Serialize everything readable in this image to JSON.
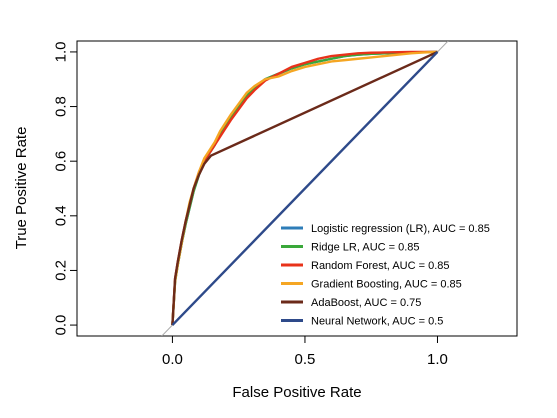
{
  "chart_data": {
    "type": "line",
    "title": "",
    "xlabel": "False Positive Rate",
    "ylabel": "True Positive Rate",
    "xlim": [
      -0.36,
      1.3
    ],
    "ylim": [
      -0.04,
      1.04
    ],
    "xticks": [
      0.0,
      0.5,
      1.0
    ],
    "xtick_labels": [
      "0.0",
      "0.5",
      "1.0"
    ],
    "yticks": [
      0.0,
      0.2,
      0.4,
      0.6,
      0.8,
      1.0
    ],
    "ytick_labels": [
      "0.0",
      "0.2",
      "0.4",
      "0.6",
      "0.8",
      "1.0"
    ],
    "grid": false,
    "legend_position": "bottom-right",
    "reference_line": {
      "x": [
        -0.04,
        1.04
      ],
      "y": [
        -0.04,
        1.04
      ],
      "color": "#aaaaaa"
    },
    "series": [
      {
        "name": "Logistic regression (LR), AUC =  0.85",
        "color": "#2e7db8",
        "x": [
          0,
          0.01,
          0.02,
          0.035,
          0.05,
          0.065,
          0.08,
          0.1,
          0.12,
          0.14,
          0.16,
          0.18,
          0.2,
          0.22,
          0.25,
          0.28,
          0.31,
          0.35,
          0.4,
          0.45,
          0.5,
          0.55,
          0.6,
          0.65,
          0.7,
          0.75,
          0.8,
          0.85,
          0.9,
          0.95,
          1.0
        ],
        "y": [
          0,
          0.16,
          0.22,
          0.3,
          0.37,
          0.43,
          0.49,
          0.55,
          0.6,
          0.63,
          0.66,
          0.7,
          0.73,
          0.76,
          0.8,
          0.84,
          0.87,
          0.9,
          0.92,
          0.94,
          0.955,
          0.965,
          0.975,
          0.985,
          0.99,
          0.993,
          0.995,
          0.997,
          0.998,
          0.999,
          1.0
        ]
      },
      {
        "name": "Ridge LR, AUC =  0.85",
        "color": "#3aa83a",
        "x": [
          0,
          0.01,
          0.02,
          0.035,
          0.05,
          0.065,
          0.08,
          0.1,
          0.12,
          0.14,
          0.16,
          0.18,
          0.2,
          0.22,
          0.25,
          0.28,
          0.31,
          0.35,
          0.4,
          0.45,
          0.5,
          0.55,
          0.6,
          0.65,
          0.7,
          0.75,
          0.8,
          0.85,
          0.9,
          0.95,
          1.0
        ],
        "y": [
          0,
          0.16,
          0.22,
          0.3,
          0.37,
          0.43,
          0.49,
          0.55,
          0.6,
          0.63,
          0.66,
          0.7,
          0.73,
          0.76,
          0.8,
          0.84,
          0.87,
          0.9,
          0.92,
          0.94,
          0.955,
          0.965,
          0.975,
          0.985,
          0.99,
          0.993,
          0.995,
          0.997,
          0.998,
          0.999,
          1.0
        ]
      },
      {
        "name": "Random Forest, AUC =  0.85",
        "color": "#e8321a",
        "x": [
          0,
          0.01,
          0.02,
          0.035,
          0.05,
          0.065,
          0.08,
          0.1,
          0.12,
          0.14,
          0.16,
          0.18,
          0.2,
          0.22,
          0.25,
          0.28,
          0.31,
          0.35,
          0.4,
          0.45,
          0.5,
          0.55,
          0.6,
          0.65,
          0.7,
          0.75,
          0.8,
          0.85,
          0.9,
          0.95,
          1.0
        ],
        "y": [
          0,
          0.17,
          0.23,
          0.31,
          0.38,
          0.44,
          0.5,
          0.56,
          0.6,
          0.63,
          0.66,
          0.69,
          0.72,
          0.75,
          0.79,
          0.83,
          0.86,
          0.895,
          0.92,
          0.945,
          0.96,
          0.975,
          0.985,
          0.99,
          0.995,
          0.997,
          0.998,
          0.999,
          1.0,
          1.0,
          1.0
        ]
      },
      {
        "name": "Gradient Boosting, AUC =  0.85",
        "color": "#f5a623",
        "x": [
          0,
          0.01,
          0.02,
          0.035,
          0.05,
          0.065,
          0.08,
          0.1,
          0.12,
          0.14,
          0.16,
          0.18,
          0.2,
          0.22,
          0.25,
          0.28,
          0.31,
          0.35,
          0.4,
          0.45,
          0.5,
          0.55,
          0.6,
          0.65,
          0.7,
          0.75,
          0.8,
          0.85,
          0.9,
          0.95,
          1.0
        ],
        "y": [
          0,
          0.16,
          0.22,
          0.3,
          0.38,
          0.45,
          0.5,
          0.56,
          0.61,
          0.64,
          0.67,
          0.71,
          0.74,
          0.77,
          0.81,
          0.85,
          0.875,
          0.9,
          0.91,
          0.93,
          0.945,
          0.955,
          0.965,
          0.97,
          0.975,
          0.98,
          0.985,
          0.99,
          0.995,
          0.998,
          1.0
        ]
      },
      {
        "name": "AdaBoost, AUC =  0.75",
        "color": "#6b2a1a",
        "x": [
          0,
          0.01,
          0.02,
          0.035,
          0.05,
          0.065,
          0.08,
          0.1,
          0.12,
          0.145,
          1.0
        ],
        "y": [
          0,
          0.17,
          0.23,
          0.31,
          0.38,
          0.44,
          0.5,
          0.55,
          0.59,
          0.62,
          1.0
        ]
      },
      {
        "name": "Neural Network, AUC =  0.5",
        "color": "#2e4a8a",
        "x": [
          0,
          1.0
        ],
        "y": [
          0,
          1.0
        ]
      }
    ]
  }
}
